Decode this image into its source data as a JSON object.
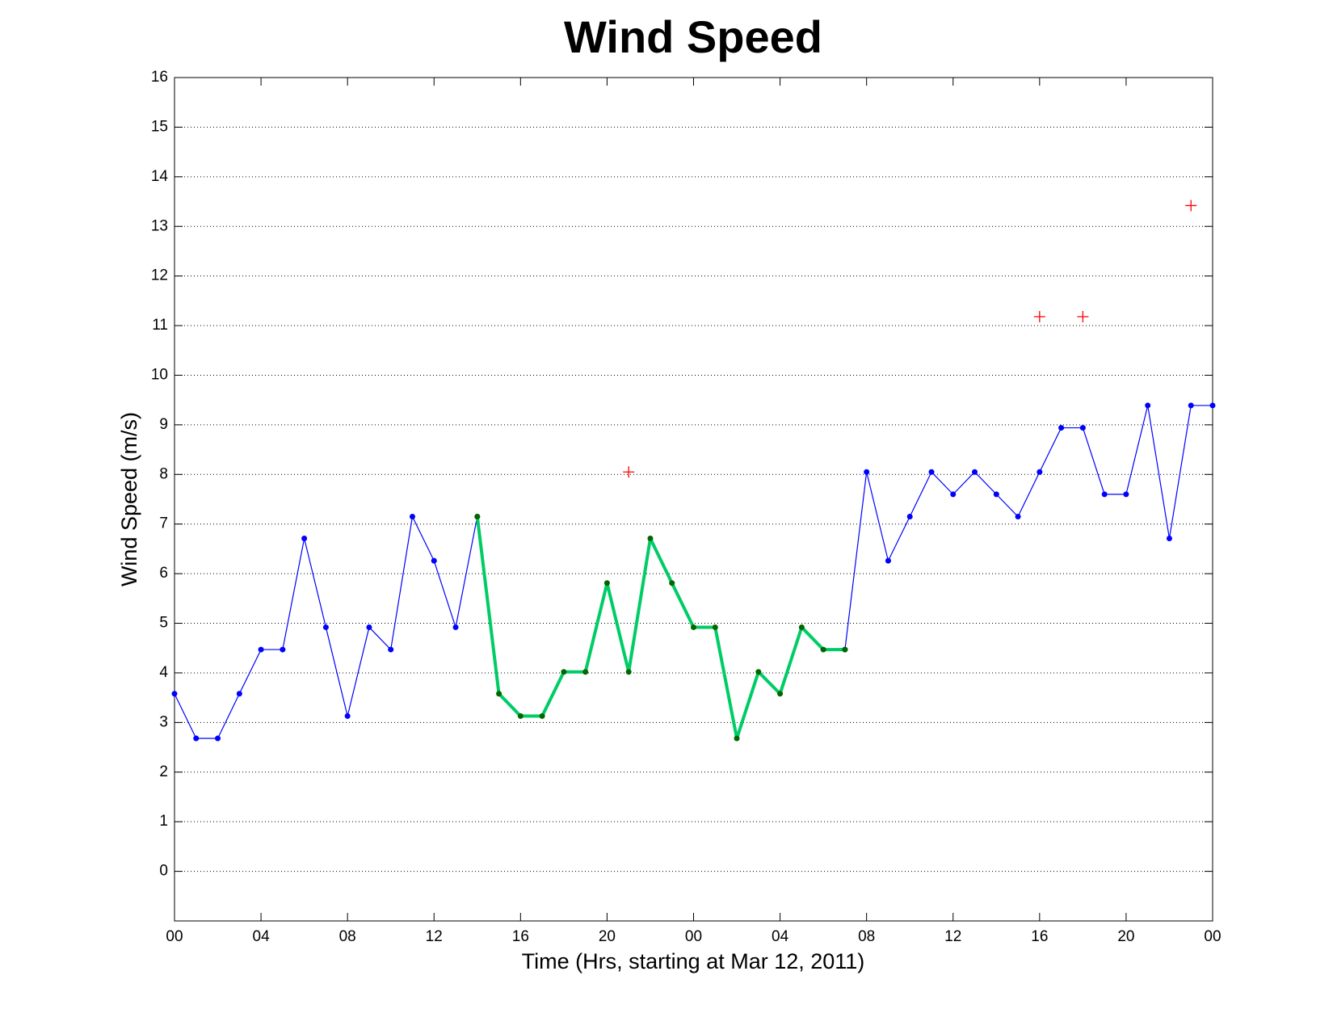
{
  "chart_data": {
    "type": "line",
    "title": "Wind Speed",
    "x_label": "Time (Hrs, starting at Mar 12, 2011)",
    "y_label": "Wind Speed (m/s)",
    "x": [
      0,
      1,
      2,
      3,
      4,
      5,
      6,
      7,
      8,
      9,
      10,
      11,
      12,
      13,
      14,
      15,
      16,
      17,
      18,
      19,
      20,
      21,
      22,
      23,
      24,
      25,
      26,
      27,
      28,
      29,
      30,
      31,
      32,
      33,
      34,
      35,
      36,
      37,
      38,
      39,
      40,
      41,
      42,
      43,
      44,
      45,
      46,
      47,
      48
    ],
    "xlim": [
      0,
      48
    ],
    "xticks": [
      {
        "value": 0,
        "label": "00"
      },
      {
        "value": 4,
        "label": "04"
      },
      {
        "value": 8,
        "label": "08"
      },
      {
        "value": 12,
        "label": "12"
      },
      {
        "value": 16,
        "label": "16"
      },
      {
        "value": 20,
        "label": "20"
      },
      {
        "value": 24,
        "label": "00"
      },
      {
        "value": 28,
        "label": "04"
      },
      {
        "value": 32,
        "label": "08"
      },
      {
        "value": 36,
        "label": "12"
      },
      {
        "value": 40,
        "label": "16"
      },
      {
        "value": 44,
        "label": "20"
      },
      {
        "value": 48,
        "label": "00"
      }
    ],
    "ylim": [
      -1,
      16
    ],
    "yticks": [
      0,
      1,
      2,
      3,
      4,
      5,
      6,
      7,
      8,
      9,
      10,
      11,
      12,
      13,
      14,
      15,
      16
    ],
    "grid": "y",
    "series": [
      {
        "color": "#0000ff",
        "marker_color": "#0000ff",
        "style": "line",
        "values": [
          3.58,
          2.68,
          2.68,
          3.58,
          4.47,
          4.47,
          6.71,
          4.92,
          3.13,
          4.92,
          4.47,
          7.15,
          6.26,
          4.92,
          7.15,
          null,
          null,
          null,
          null,
          null,
          null,
          null,
          null,
          null,
          null,
          null,
          null,
          null,
          null,
          null,
          null,
          4.47,
          8.05,
          6.26,
          7.15,
          8.05,
          7.6,
          8.05,
          7.6,
          7.15,
          8.05,
          8.94,
          8.94,
          7.6,
          7.6,
          9.39,
          6.71,
          9.39,
          9.39
        ]
      },
      {
        "color": "#00cc66",
        "marker_color": "#006600",
        "style": "thick-line",
        "values": [
          null,
          null,
          null,
          null,
          null,
          null,
          null,
          null,
          null,
          null,
          null,
          null,
          null,
          null,
          7.15,
          3.58,
          3.13,
          3.13,
          4.02,
          4.02,
          5.81,
          4.02,
          6.71,
          5.81,
          4.92,
          4.92,
          2.68,
          4.02,
          3.58,
          4.92,
          4.47,
          4.47,
          null,
          null,
          null,
          null,
          null,
          null,
          null,
          null,
          null,
          null,
          null,
          null,
          null,
          null,
          null,
          null,
          null
        ]
      },
      {
        "color": "#ff0000",
        "style": "plus",
        "values": [
          null,
          null,
          null,
          null,
          null,
          null,
          null,
          null,
          null,
          null,
          null,
          null,
          null,
          null,
          null,
          null,
          null,
          null,
          null,
          null,
          null,
          8.05,
          null,
          null,
          null,
          null,
          null,
          null,
          null,
          null,
          null,
          null,
          null,
          null,
          null,
          null,
          null,
          null,
          null,
          null,
          11.18,
          null,
          11.18,
          null,
          null,
          null,
          null,
          13.42,
          null
        ]
      }
    ]
  }
}
